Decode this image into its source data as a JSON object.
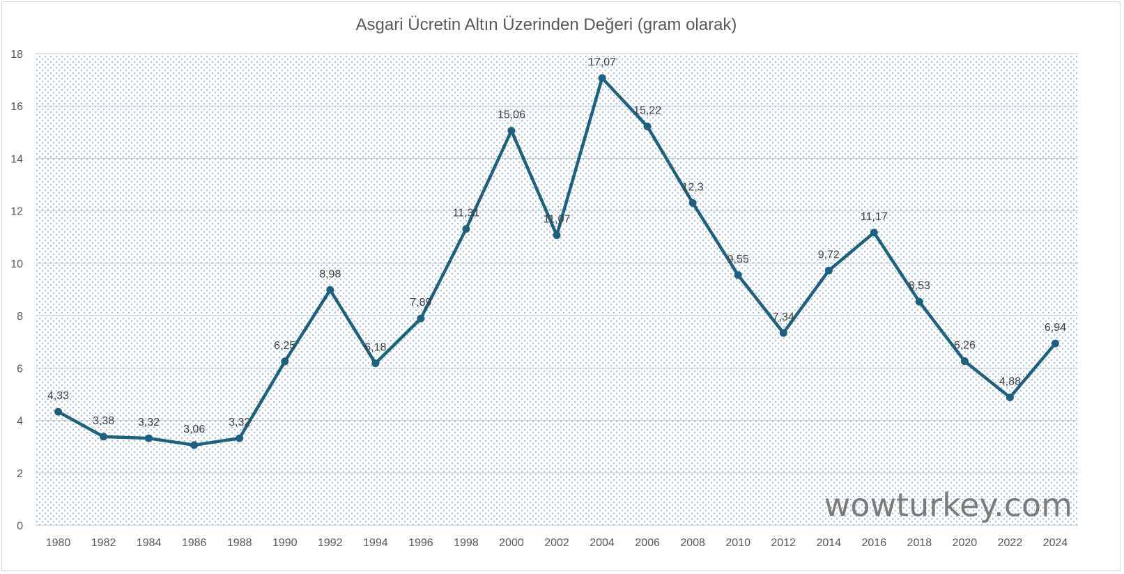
{
  "chart_data": {
    "type": "line",
    "title": "Asgari Ücretin Altın Üzerinden Değeri (gram olarak)",
    "xlabel": "",
    "ylabel": "",
    "categories": [
      "1980",
      "1982",
      "1984",
      "1986",
      "1988",
      "1990",
      "1992",
      "1994",
      "1996",
      "1998",
      "2000",
      "2002",
      "2004",
      "2006",
      "2008",
      "2010",
      "2012",
      "2014",
      "2016",
      "2018",
      "2020",
      "2022",
      "2024"
    ],
    "values": [
      4.33,
      3.38,
      3.32,
      3.06,
      3.32,
      6.25,
      8.98,
      6.18,
      7.89,
      11.31,
      15.06,
      11.07,
      17.07,
      15.22,
      12.3,
      9.55,
      7.34,
      9.72,
      11.17,
      8.53,
      6.26,
      4.88,
      6.94
    ],
    "data_labels": [
      "4,33",
      "3,38",
      "3,32",
      "3,06",
      "3,32",
      "6,25",
      "8,98",
      "6,18",
      "7,89",
      "11,31",
      "15,06",
      "11,07",
      "17,07",
      "15,22",
      "12,3",
      "9,55",
      "7,34",
      "9,72",
      "11,17",
      "8,53",
      "6,26",
      "4,88",
      "6,94"
    ],
    "ylim": [
      0,
      18
    ],
    "yticks": [
      "0",
      "2",
      "4",
      "6",
      "8",
      "10",
      "12",
      "14",
      "16",
      "18"
    ],
    "grid": true,
    "legend": "none",
    "line_color": "#1f5f7f",
    "plot_pattern_color": "#5b8fb0",
    "gridline_color": "#c5d3e0"
  },
  "watermark": "wowturkey.com"
}
